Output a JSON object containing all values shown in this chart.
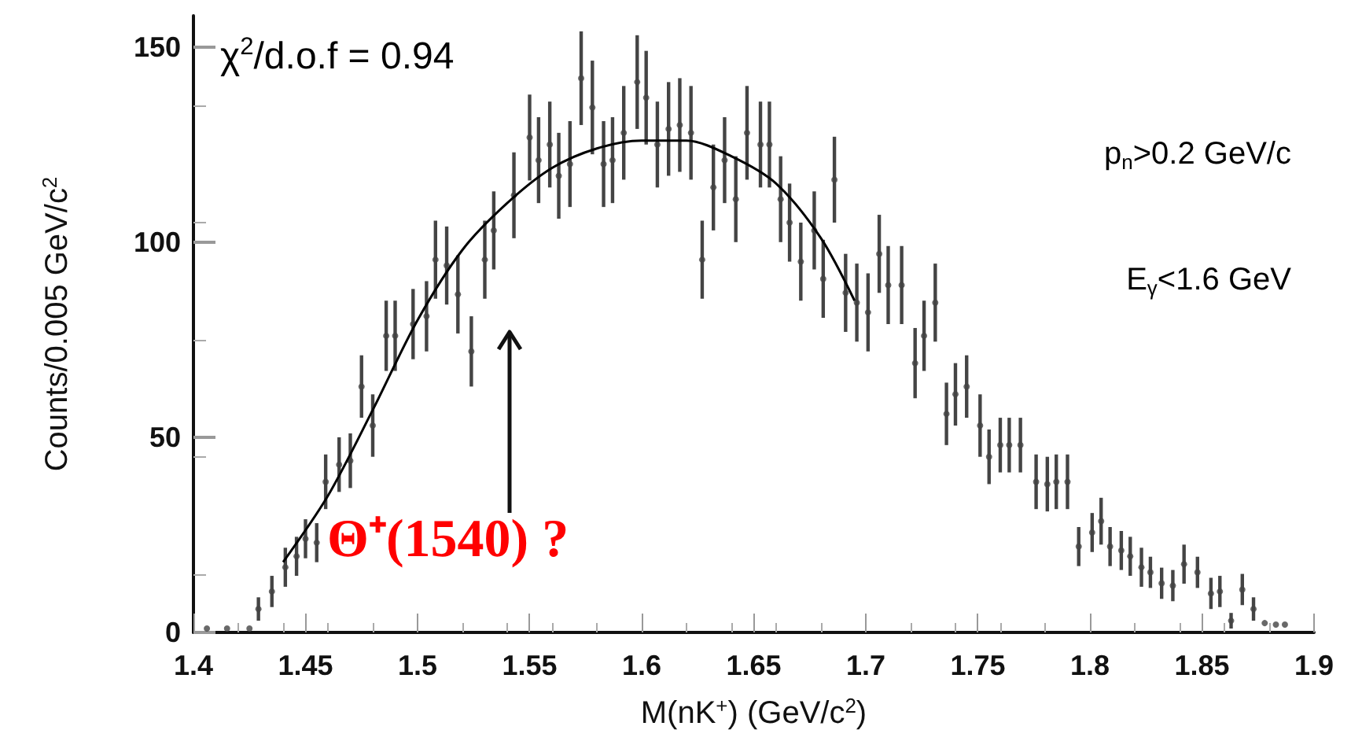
{
  "chart_data": {
    "type": "scatter",
    "xlabel": "M(nK$^{+}$) (GeV/c$^{2}$)",
    "ylabel": "Counts/0.005 GeV/c$^{2}$",
    "xlim": [
      1.4,
      1.9
    ],
    "xticks": [
      1.4,
      1.45,
      1.5,
      1.55,
      1.6,
      1.65,
      1.7,
      1.75,
      1.8,
      1.85,
      1.9
    ],
    "ylim": [
      0,
      158
    ],
    "yticks": [
      0,
      50,
      100,
      150
    ],
    "grid": false,
    "annotations": [
      "χ$^{2}$/d.o.f = 0.94",
      "p$_{n}$>0.2 GeV/c",
      "E$_{γ}$<1.6 GeV",
      "Θ⁺(1540) ?"
    ],
    "series": [
      {
        "color": "#444444",
        "marker": "circle",
        "x": [
          1.406,
          1.415,
          1.425,
          1.429,
          1.435,
          1.441,
          1.446,
          1.45,
          1.455,
          1.459,
          1.465,
          1.47,
          1.475,
          1.48,
          1.486,
          1.49,
          1.498,
          1.504,
          1.508,
          1.513,
          1.518,
          1.524,
          1.53,
          1.534,
          1.543,
          1.55,
          1.554,
          1.559,
          1.563,
          1.568,
          1.573,
          1.578,
          1.583,
          1.587,
          1.592,
          1.598,
          1.602,
          1.607,
          1.612,
          1.617,
          1.622,
          1.627,
          1.632,
          1.637,
          1.642,
          1.647,
          1.653,
          1.657,
          1.662,
          1.666,
          1.671,
          1.677,
          1.681,
          1.686,
          1.691,
          1.696,
          1.701,
          1.706,
          1.71,
          1.716,
          1.722,
          1.726,
          1.731,
          1.736,
          1.74,
          1.745,
          1.751,
          1.755,
          1.76,
          1.764,
          1.769,
          1.776,
          1.781,
          1.785,
          1.79,
          1.795,
          1.801,
          1.805,
          1.809,
          1.814,
          1.818,
          1.823,
          1.827,
          1.832,
          1.837,
          1.842,
          1.848,
          1.854,
          1.858,
          1.863,
          1.868,
          1.873,
          1.878,
          1.883,
          1.887
        ],
        "values": [
          1,
          1,
          1,
          6,
          10.5,
          16.7,
          19.5,
          24,
          23,
          38.6,
          43,
          44,
          63,
          53,
          76,
          76,
          79,
          81,
          95.5,
          94,
          86.6,
          72,
          95.5,
          103,
          112,
          126.8,
          121,
          125,
          117,
          120,
          142,
          134.5,
          120,
          121,
          128,
          141,
          137,
          125,
          129,
          130,
          128,
          95.5,
          114,
          121,
          111,
          128,
          125,
          125,
          111,
          105,
          95,
          103,
          90.6,
          116,
          87,
          84.5,
          82,
          97,
          89,
          89,
          69,
          76,
          84.5,
          56,
          61,
          63,
          53,
          45,
          48,
          48,
          48,
          38.6,
          38,
          38.6,
          38.6,
          22,
          25.6,
          28.5,
          22,
          21,
          19.5,
          16.7,
          15.4,
          12.6,
          12,
          17.5,
          15.4,
          10,
          10.5,
          3,
          11,
          6,
          2.4,
          2,
          2
        ],
        "errors": [
          null,
          null,
          null,
          3,
          4,
          5,
          5,
          5,
          5,
          7,
          7,
          7,
          8,
          8,
          9,
          9,
          9,
          9,
          10,
          10,
          10,
          9,
          10,
          10,
          11,
          11,
          11,
          11,
          11,
          11,
          12,
          12,
          11,
          11,
          12,
          12,
          12,
          11,
          12,
          12,
          12,
          10,
          11,
          11,
          11,
          12,
          11,
          11,
          11,
          10,
          10,
          10,
          10,
          11,
          10,
          10,
          10,
          10,
          10,
          10,
          9,
          9,
          10,
          8,
          8,
          8,
          8,
          7,
          7,
          7,
          7,
          7,
          7,
          7,
          7,
          5,
          5,
          6,
          5,
          5,
          5,
          5,
          4,
          4,
          4,
          5,
          4,
          4,
          4,
          2,
          4,
          3,
          null,
          null,
          null
        ]
      },
      {
        "type": "line",
        "color": "#000000",
        "x": [
          1.44,
          1.46,
          1.48,
          1.5,
          1.52,
          1.54,
          1.56,
          1.58,
          1.6,
          1.62,
          1.64,
          1.66,
          1.68,
          1.695
        ],
        "values": [
          18,
          35,
          57,
          80,
          98,
          110,
          119,
          124,
          126,
          126,
          122,
          115,
          101,
          85
        ]
      }
    ]
  }
}
